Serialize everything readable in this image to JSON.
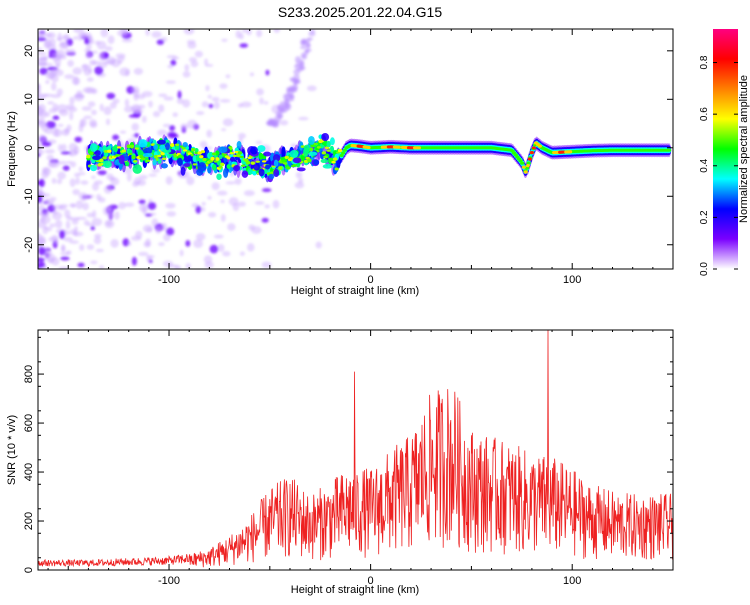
{
  "title": "S233.2025.201.22.04.G15",
  "chart_data": [
    {
      "type": "heatmap",
      "name": "spectrogram",
      "xlabel": "Height of straight line (km)",
      "ylabel": "Frequency (Hz)",
      "xlim": [
        -165,
        150
      ],
      "ylim": [
        -25,
        24.5
      ],
      "x_ticks": [
        -100,
        0,
        100
      ],
      "y_ticks": [
        -20,
        -10,
        0,
        10,
        20
      ],
      "colorbar": {
        "label": "Normalized spectral amplitude",
        "range": [
          0,
          0.93
        ],
        "ticks": [
          "0.0",
          "0.2",
          "0.4",
          "0.6",
          "0.8"
        ],
        "tick_values": [
          0,
          0.2,
          0.4,
          0.6,
          0.8
        ],
        "colormap": [
          "#ffffff",
          "#7a00ff",
          "#0000ff",
          "#00ffff",
          "#00ff00",
          "#ffff00",
          "#ff8000",
          "#ff0000",
          "#ff0080"
        ]
      },
      "ridge": {
        "x": [
          -140,
          -130,
          -120,
          -110,
          -100,
          -90,
          -80,
          -70,
          -60,
          -50,
          -40,
          -30,
          -25,
          -20,
          -18,
          -15,
          -12,
          -10,
          -5,
          0,
          10,
          20,
          30,
          40,
          50,
          60,
          70,
          75,
          77,
          80,
          82,
          85,
          90,
          100,
          110,
          120,
          130,
          140,
          148
        ],
        "y": [
          -2,
          -2,
          -1.5,
          -1,
          -0.5,
          -2,
          -3,
          -2,
          -3,
          -4,
          -2,
          -1,
          0.5,
          -1,
          -3,
          -2,
          0,
          0.5,
          0.3,
          0,
          0.2,
          0,
          0,
          0,
          0,
          0,
          -0.5,
          -3,
          -5,
          -1,
          1,
          0,
          -1,
          -0.8,
          -0.6,
          -0.5,
          -0.5,
          -0.5,
          -0.5
        ],
        "peak_x": [
          -5,
          10,
          20,
          80,
          95
        ],
        "note_arc_x": [
          -50,
          -30
        ],
        "note_arc_y": [
          5,
          24
        ]
      }
    },
    {
      "type": "line",
      "name": "snr",
      "xlabel": "Height of straight line (km)",
      "ylabel": "SNR (10 * v/v)",
      "xlim": [
        -165,
        150
      ],
      "ylim": [
        0,
        980
      ],
      "x_ticks": [
        -100,
        0,
        100
      ],
      "y_ticks": [
        0,
        200,
        400,
        600,
        800
      ],
      "color": "#ee2222",
      "envelope_x": [
        -165,
        -140,
        -120,
        -100,
        -90,
        -80,
        -70,
        -60,
        -50,
        -40,
        -30,
        -20,
        -10,
        0,
        10,
        20,
        30,
        40,
        50,
        60,
        70,
        80,
        90,
        100,
        110,
        120,
        130,
        140,
        150
      ],
      "envelope_y": [
        30,
        30,
        35,
        40,
        50,
        70,
        110,
        170,
        260,
        300,
        240,
        280,
        330,
        320,
        380,
        430,
        560,
        600,
        450,
        420,
        400,
        370,
        360,
        320,
        270,
        250,
        240,
        240,
        240
      ],
      "spikes_x": [
        -8,
        42,
        88
      ],
      "spikes_y": [
        810,
        640,
        980
      ]
    }
  ]
}
